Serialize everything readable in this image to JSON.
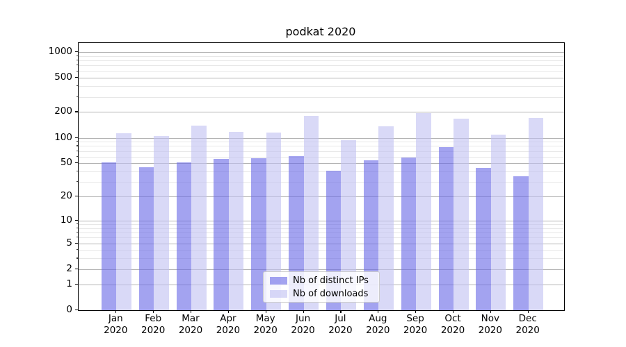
{
  "chart_data": {
    "type": "bar",
    "title": "podkat 2020",
    "categories": [
      "Jan",
      "Feb",
      "Mar",
      "Apr",
      "May",
      "Jun",
      "Jul",
      "Aug",
      "Sep",
      "Oct",
      "Nov",
      "Dec"
    ],
    "category_year": "2020",
    "series": [
      {
        "name": "Nb of distinct IPs",
        "values": [
          51,
          45,
          51,
          56,
          57,
          61,
          41,
          54,
          59,
          77,
          44,
          35
        ],
        "color": "rgba(102,102,230,0.6)"
      },
      {
        "name": "Nb of downloads",
        "values": [
          112,
          105,
          138,
          117,
          115,
          182,
          94,
          137,
          196,
          168,
          109,
          170
        ],
        "color": "rgba(191,191,242,0.6)"
      }
    ],
    "axis": {
      "scale": "log1p",
      "yticks": [
        0,
        1,
        2,
        5,
        10,
        20,
        50,
        100,
        200,
        500,
        1000
      ],
      "minor_yticks": [
        3,
        4,
        6,
        7,
        8,
        9,
        30,
        40,
        60,
        70,
        80,
        90,
        300,
        400,
        600,
        700,
        800,
        900
      ],
      "ylim": [
        0,
        1273
      ],
      "grid": true
    },
    "legend": {
      "position": "lower-center",
      "labels": [
        "Nb of distinct IPs",
        "Nb of downloads"
      ]
    }
  }
}
